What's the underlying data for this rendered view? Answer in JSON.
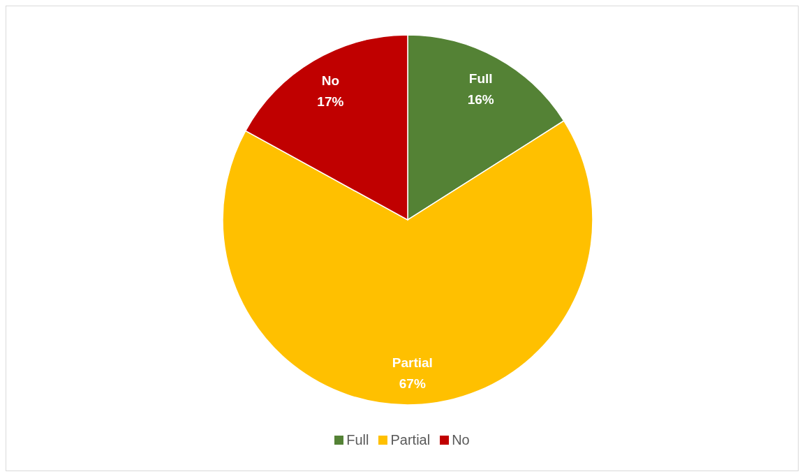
{
  "chart_data": {
    "type": "pie",
    "categories": [
      "Full",
      "Partial",
      "No"
    ],
    "values": [
      16,
      67,
      17
    ],
    "value_labels": [
      "16%",
      "67%",
      "17%"
    ],
    "colors": [
      "#548235",
      "#ffc000",
      "#c00000"
    ],
    "legend": "bottom"
  }
}
